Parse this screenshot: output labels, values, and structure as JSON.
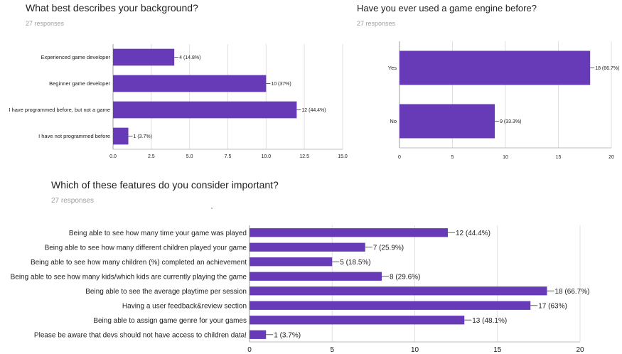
{
  "theme": {
    "bar_color": "#673ab7",
    "grid_color": "#e0e0e0",
    "text_color": "#212121",
    "muted_color": "#9e9e9e"
  },
  "charts": [
    {
      "title": "What best describes your background?",
      "responses": "27 responses"
    },
    {
      "title": "Have you ever used a game engine before?",
      "responses": "27 responses"
    },
    {
      "title": "Which of these features do you consider important?",
      "responses": "27 responses"
    }
  ],
  "chart_data": [
    {
      "type": "bar",
      "orientation": "horizontal",
      "title": "What best describes your background?",
      "categories": [
        "Experienced game developer",
        "Beginner game developer",
        "I have programmed before, but not a game",
        "I have not programmed before"
      ],
      "values": [
        4,
        10,
        12,
        1
      ],
      "data_labels": [
        "4 (14.8%)",
        "10 (37%)",
        "12 (44.4%)",
        "1 (3.7%)"
      ],
      "xlim": [
        0,
        15
      ],
      "ticks": [
        "0.0",
        "2.5",
        "5.0",
        "7.5",
        "10.0",
        "12.5",
        "15.0"
      ],
      "grid": true
    },
    {
      "type": "bar",
      "orientation": "horizontal",
      "title": "Have you ever used a game engine before?",
      "categories": [
        "Yes",
        "No"
      ],
      "values": [
        18,
        9
      ],
      "data_labels": [
        "18 (66.7%)",
        "9 (33.3%)"
      ],
      "xlim": [
        0,
        20
      ],
      "ticks": [
        "0",
        "5",
        "10",
        "15",
        "20"
      ],
      "grid": true
    },
    {
      "type": "bar",
      "orientation": "horizontal",
      "title": "Which of these features do you consider important?",
      "categories": [
        "Being able to see how many time your game was played",
        "Being able to see how many different children played your game",
        "Being able to see how many children (%) completed an achievement",
        "Being able to see how many kids/which kids are currently playing the game",
        "Being able to see the average playtime per session",
        "Having a user feedback&review section",
        "Being able to assign game genre for your games",
        "Please be aware that devs should not have access to children data!"
      ],
      "values": [
        12,
        7,
        5,
        8,
        18,
        17,
        13,
        1
      ],
      "data_labels": [
        "12 (44.4%)",
        "7 (25.9%)",
        "5 (18.5%)",
        "8 (29.6%)",
        "18 (66.7%)",
        "17 (63%)",
        "13 (48.1%)",
        "1 (3.7%)"
      ],
      "xlim": [
        0,
        20
      ],
      "ticks": [
        "0",
        "5",
        "10",
        "15",
        "20"
      ],
      "grid": true
    }
  ]
}
